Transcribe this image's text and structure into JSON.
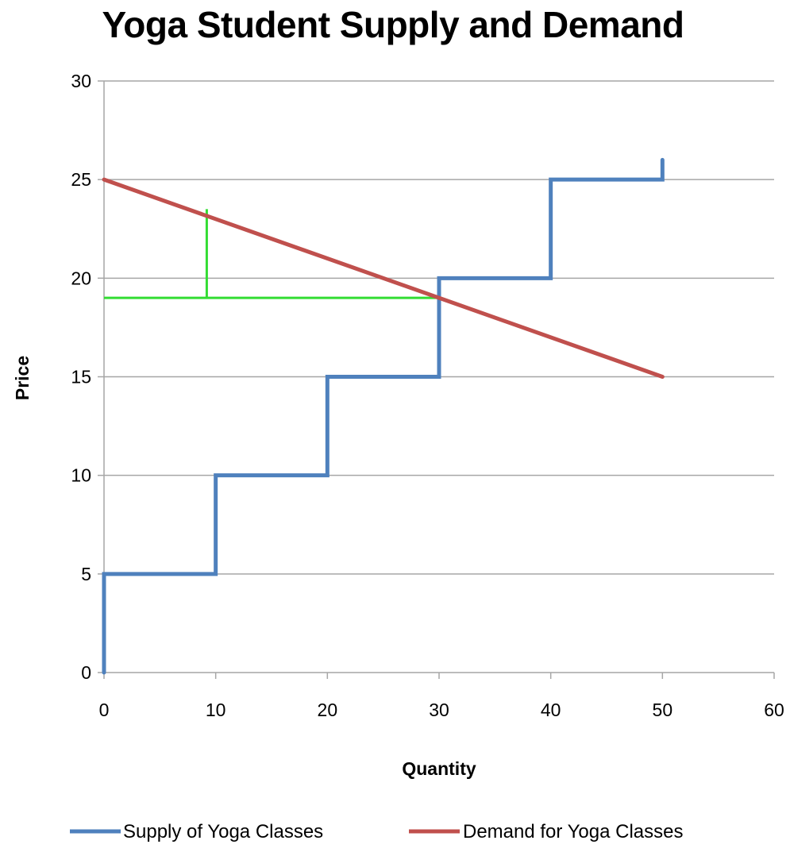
{
  "chart_data": {
    "type": "line",
    "title": "Yoga Student Supply and Demand",
    "xlabel": "Quantity",
    "ylabel": "Price",
    "xlim": [
      0,
      60
    ],
    "ylim": [
      0,
      30
    ],
    "x_ticks": [
      0,
      10,
      20,
      30,
      40,
      50,
      60
    ],
    "y_ticks": [
      0,
      5,
      10,
      15,
      20,
      25,
      30
    ],
    "grid": "horizontal",
    "legend_position": "bottom",
    "series": [
      {
        "name": "Supply of Yoga Classes",
        "color": "#4F81BD",
        "step": true,
        "points": [
          [
            0,
            0
          ],
          [
            0,
            5
          ],
          [
            10,
            5
          ],
          [
            10,
            10
          ],
          [
            20,
            10
          ],
          [
            20,
            15
          ],
          [
            30,
            15
          ],
          [
            30,
            20
          ],
          [
            40,
            20
          ],
          [
            40,
            25
          ],
          [
            50,
            25
          ],
          [
            50,
            26
          ]
        ]
      },
      {
        "name": "Demand for Yoga Classes",
        "color": "#C0504D",
        "points": [
          [
            0,
            25
          ],
          [
            50,
            15
          ]
        ]
      }
    ],
    "annotations": [
      {
        "kind": "horizontal-line",
        "color": "#33DD33",
        "points": [
          [
            0,
            19
          ],
          [
            30,
            19
          ]
        ]
      },
      {
        "kind": "vertical-line",
        "color": "#33DD33",
        "points": [
          [
            9.2,
            19
          ],
          [
            9.2,
            23.5
          ]
        ]
      }
    ]
  }
}
